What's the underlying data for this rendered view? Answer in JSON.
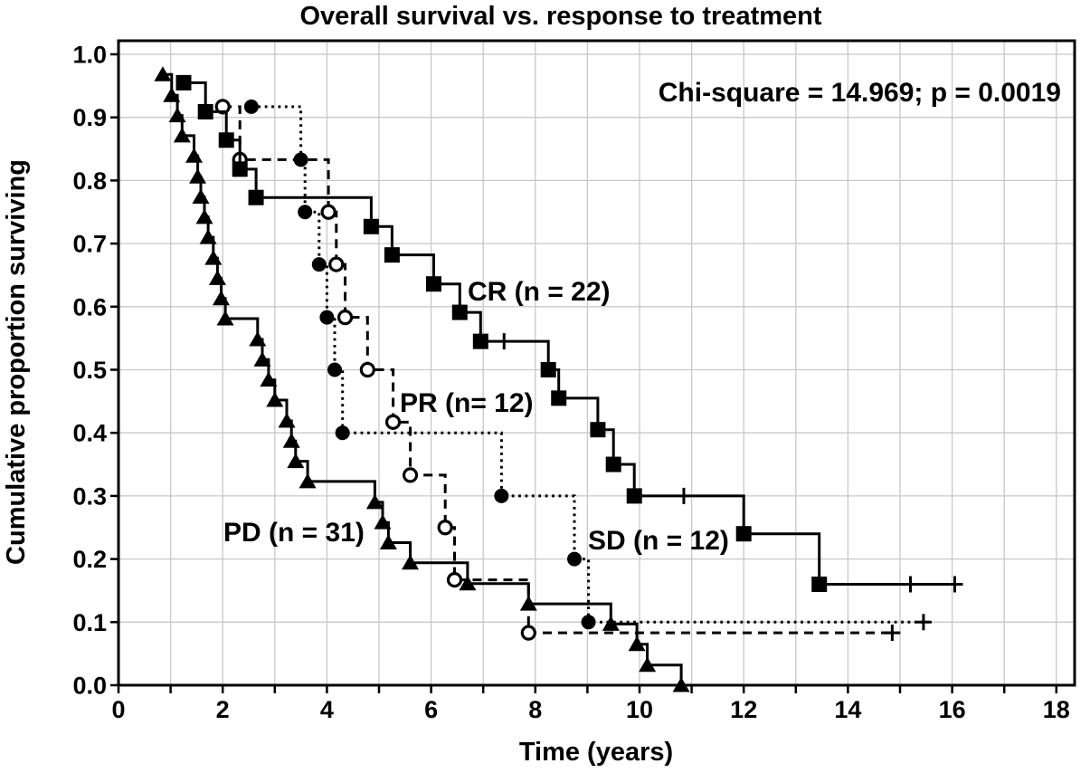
{
  "figure": {
    "title": "Overall survival vs. response to treatment",
    "x_label": "Time (years)",
    "y_label": "Cumulative proportion surviving",
    "annotation": "Chi-square = 14.969; p = 0.0019"
  },
  "colors": {
    "curve": "#000000",
    "grid": "#c8c8c8",
    "background": "#ffffff",
    "text": "#000000"
  },
  "chart_data": {
    "type": "line",
    "subtype": "kaplan-meier-step",
    "title": "Overall survival vs. response to treatment",
    "xlabel": "Time (years)",
    "ylabel": "Cumulative proportion surviving",
    "annotation": "Chi-square = 14.969; p = 0.0019",
    "grid": true,
    "legend_position": "inline-labels",
    "x_axis": {
      "min": 0,
      "max": 18,
      "major_ticks": [
        0,
        2,
        4,
        6,
        8,
        10,
        12,
        14,
        16,
        18
      ],
      "minor_step": 1
    },
    "y_axis": {
      "min": 0.0,
      "max": 1.0,
      "tick_step": 0.1,
      "tick_labels": [
        "0.0",
        "0.1",
        "0.2",
        "0.3",
        "0.4",
        "0.5",
        "0.6",
        "0.7",
        "0.8",
        "0.9",
        "1.0"
      ]
    },
    "series": [
      {
        "id": "sd",
        "name": "SD",
        "label": "SD (n = 12)",
        "n": 12,
        "marker": "filled-circle",
        "line_style": "dotted",
        "points": [
          [
            2.55,
            0.917
          ],
          [
            3.5,
            0.833
          ],
          [
            3.58,
            0.75
          ],
          [
            3.85,
            0.667
          ],
          [
            4.0,
            0.583
          ],
          [
            4.15,
            0.5
          ],
          [
            4.3,
            0.4
          ],
          [
            7.35,
            0.3
          ],
          [
            8.75,
            0.2
          ],
          [
            9.02,
            0.1
          ]
        ],
        "censors": [
          {
            "t": 15.45,
            "s": 0.1,
            "style": "plus"
          }
        ],
        "line_end": 15.55
      },
      {
        "id": "pr",
        "name": "PR",
        "label": "PR (n= 12)",
        "n": 12,
        "marker": "open-circle",
        "line_style": "dashed",
        "points": [
          [
            2.0,
            0.917
          ],
          [
            2.33,
            0.833
          ],
          [
            4.03,
            0.75
          ],
          [
            4.18,
            0.667
          ],
          [
            4.35,
            0.583
          ],
          [
            4.78,
            0.5
          ],
          [
            5.27,
            0.417
          ],
          [
            5.6,
            0.333
          ],
          [
            6.27,
            0.25
          ],
          [
            6.45,
            0.167
          ],
          [
            7.87,
            0.083
          ]
        ],
        "censors": [
          {
            "t": 14.85,
            "s": 0.083,
            "style": "plus"
          }
        ],
        "line_end": 14.95
      },
      {
        "id": "cr",
        "name": "CR",
        "label": "CR (n = 22)",
        "n": 22,
        "marker": "filled-square",
        "line_style": "solid",
        "points": [
          [
            1.25,
            0.955
          ],
          [
            1.67,
            0.909
          ],
          [
            2.07,
            0.864
          ],
          [
            2.33,
            0.818
          ],
          [
            2.64,
            0.773
          ],
          [
            4.85,
            0.727
          ],
          [
            5.25,
            0.682
          ],
          [
            6.05,
            0.636
          ],
          [
            6.55,
            0.591
          ],
          [
            6.95,
            0.545
          ],
          [
            8.25,
            0.5
          ],
          [
            8.45,
            0.455
          ],
          [
            9.2,
            0.405
          ],
          [
            9.5,
            0.35
          ],
          [
            9.9,
            0.3
          ],
          [
            12.0,
            0.24
          ],
          [
            13.45,
            0.16
          ]
        ],
        "censors": [
          {
            "t": 7.4,
            "s": 0.545,
            "style": "tick"
          },
          {
            "t": 10.85,
            "s": 0.3,
            "style": "tick"
          },
          {
            "t": 15.2,
            "s": 0.16,
            "style": "tick"
          },
          {
            "t": 16.05,
            "s": 0.16,
            "style": "plus"
          }
        ],
        "line_end": 16.15
      },
      {
        "id": "pd",
        "name": "PD",
        "label": "PD (n = 31)",
        "n": 31,
        "marker": "filled-triangle",
        "line_style": "solid",
        "points": [
          [
            0.85,
            0.968
          ],
          [
            1.02,
            0.935
          ],
          [
            1.13,
            0.903
          ],
          [
            1.22,
            0.871
          ],
          [
            1.45,
            0.839
          ],
          [
            1.52,
            0.806
          ],
          [
            1.58,
            0.774
          ],
          [
            1.65,
            0.742
          ],
          [
            1.72,
            0.71
          ],
          [
            1.82,
            0.677
          ],
          [
            1.9,
            0.645
          ],
          [
            1.97,
            0.613
          ],
          [
            2.05,
            0.581
          ],
          [
            2.67,
            0.548
          ],
          [
            2.76,
            0.516
          ],
          [
            2.88,
            0.484
          ],
          [
            3.0,
            0.452
          ],
          [
            3.23,
            0.419
          ],
          [
            3.32,
            0.387
          ],
          [
            3.4,
            0.355
          ],
          [
            3.63,
            0.323
          ],
          [
            4.92,
            0.29
          ],
          [
            5.07,
            0.258
          ],
          [
            5.18,
            0.226
          ],
          [
            5.6,
            0.194
          ],
          [
            6.7,
            0.161
          ],
          [
            7.87,
            0.129
          ],
          [
            9.45,
            0.097
          ],
          [
            9.95,
            0.065
          ],
          [
            10.15,
            0.032
          ],
          [
            10.8,
            0.0
          ]
        ],
        "censors": [],
        "line_end": 10.95
      }
    ]
  }
}
